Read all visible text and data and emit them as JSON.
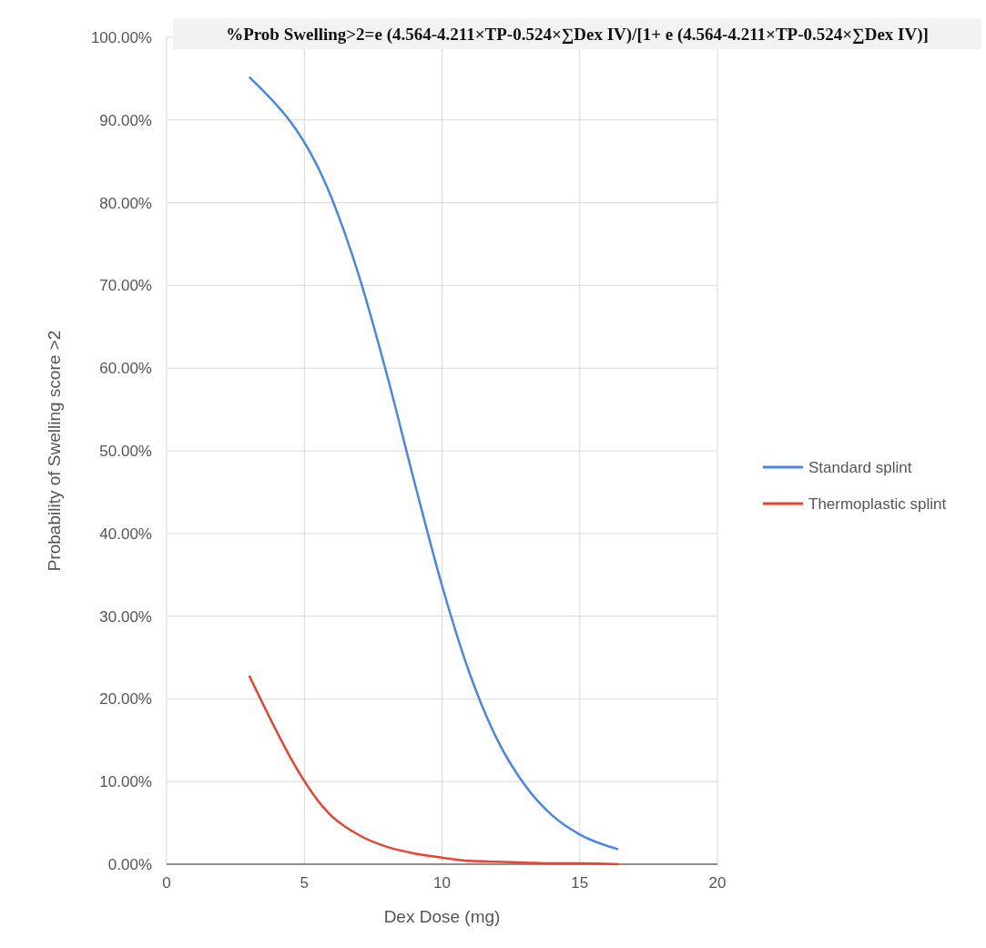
{
  "chart_data": {
    "type": "line",
    "title": "%Prob Swelling>2=e (4.564-4.211×TP-0.524×∑Dex IV)/[1+ e (4.564-4.211×TP-0.524×∑Dex IV)]",
    "xlabel": "Dex Dose (mg)",
    "ylabel": "Probability of Swelling score >2",
    "x": [
      3,
      6,
      7,
      8,
      9,
      10,
      11,
      12,
      13,
      14,
      15,
      16.4
    ],
    "series": [
      {
        "name": "Standard splint",
        "color": "#4a86e8",
        "values": [
          95.2,
          80.5,
          71.0,
          59.2,
          46.2,
          33.7,
          23.1,
          15.1,
          9.6,
          5.9,
          3.6,
          1.8
        ]
      },
      {
        "name": "Thermoplastic splint",
        "color": "#ea4335",
        "values": [
          22.8,
          5.8,
          3.5,
          2.1,
          1.3,
          0.8,
          0.4,
          0.3,
          0.2,
          0.1,
          0.1,
          0
        ]
      }
    ],
    "xlim": [
      0,
      20
    ],
    "xticks": [
      0,
      5,
      10,
      15,
      20
    ],
    "ylim": [
      0,
      100
    ],
    "yticks": [
      {
        "value": 0,
        "label": "0.00%"
      },
      {
        "value": 10,
        "label": "10.00%"
      },
      {
        "value": 20,
        "label": "20.00%"
      },
      {
        "value": 30,
        "label": "30.00%"
      },
      {
        "value": 40,
        "label": "40.00%"
      },
      {
        "value": 50,
        "label": "50.00%"
      },
      {
        "value": 60,
        "label": "60.00%"
      },
      {
        "value": 70,
        "label": "70.00%"
      },
      {
        "value": 80,
        "label": "80.00%"
      },
      {
        "value": 90,
        "label": "90.00%"
      },
      {
        "value": 100,
        "label": "100.00%"
      }
    ],
    "grid": true,
    "legend": "right"
  }
}
